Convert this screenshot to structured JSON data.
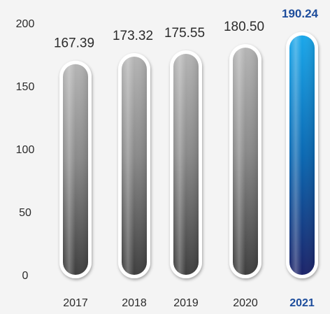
{
  "chart_data": {
    "type": "bar",
    "categories": [
      "2017",
      "2018",
      "2019",
      "2020",
      "2021"
    ],
    "values": [
      167.39,
      173.32,
      175.55,
      180.5,
      190.24
    ],
    "value_labels": [
      "167.39",
      "173.32",
      "175.55",
      "180.50",
      "190.24"
    ],
    "yticks": [
      0,
      50,
      100,
      150,
      200
    ],
    "ylim": [
      0,
      200
    ],
    "title": "",
    "xlabel": "",
    "ylabel": "",
    "highlight_index": 4,
    "grid": false,
    "legend": "none",
    "colors": {
      "bar_top": "#b4b4b4",
      "bar_mid": "#8a8a8a",
      "bar_bottom": "#3e3e3e",
      "highlight_top": "#1aa7ea",
      "highlight_mid": "#0a68b2",
      "highlight_bottom": "#1b2268",
      "highlight_text": "#1d4d9c",
      "text": "#2b2b2b"
    }
  }
}
